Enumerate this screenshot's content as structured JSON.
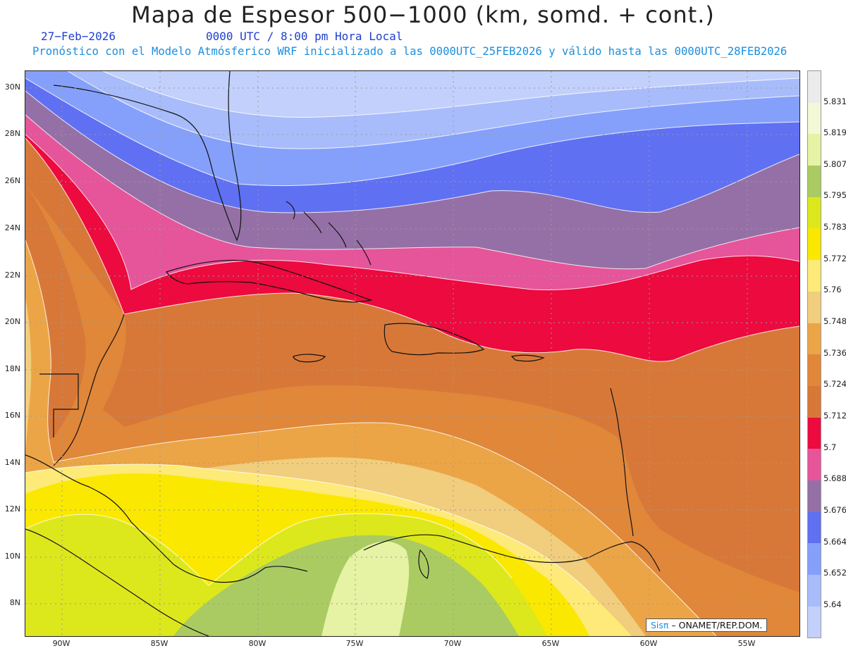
{
  "title": "Mapa de Espesor 500−1000 (km, somd. + cont.)",
  "date": "27−Feb−2026",
  "time": "0000 UTC / 8:00 pm Hora Local",
  "model_info": "Pronóstico con el Modelo Atmósferico WRF inicializado a las 0000UTC_25FEB2026 y válido hasta las  0000UTC_28FEB2026",
  "lat_labels": [
    "30N",
    "28N",
    "26N",
    "24N",
    "22N",
    "20N",
    "18N",
    "16N",
    "14N",
    "12N",
    "10N",
    "8N"
  ],
  "lon_labels": [
    "90W",
    "85W",
    "80W",
    "75W",
    "70W",
    "65W",
    "60W",
    "55W"
  ],
  "colorbar": {
    "labels": [
      "5.831",
      "5.819",
      "5.807",
      "5.795",
      "5.783",
      "5.772",
      "5.76",
      "5.748",
      "5.736",
      "5.724",
      "5.712",
      "5.7",
      "5.688",
      "5.676",
      "5.664",
      "5.652",
      "5.64"
    ],
    "colors": [
      "#ebebeb",
      "#f3f8d6",
      "#e6f2a4",
      "#aacb62",
      "#dde81c",
      "#fae800",
      "#fdea78",
      "#f1cd7e",
      "#eba547",
      "#e0873a",
      "#d87838",
      "#ec0a3e",
      "#e6549a",
      "#9570a6",
      "#6070f2",
      "#85a0fb",
      "#a8bcfb",
      "#c3d0fb"
    ]
  },
  "credit": {
    "brand": "Sisπ",
    "text": "– ONAMET/REP.DOM."
  }
}
